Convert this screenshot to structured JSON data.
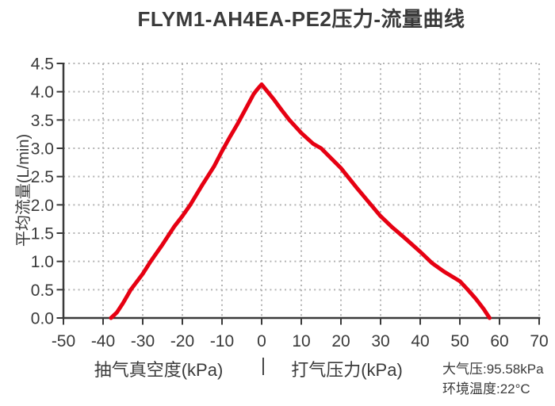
{
  "title": "FLYM1-AH4EA-PE2压力-流量曲线",
  "colors": {
    "curve": "#e60012",
    "text": "#3a3a3a",
    "axis": "#3a3a3a",
    "grid": "#b3b3b3",
    "background": "#ffffff"
  },
  "chart_data": {
    "type": "line",
    "title": "FLYM1-AH4EA-PE2压力-流量曲线",
    "ylabel": "平均流量(L/min)",
    "xlabel_left": "抽气真空度(kPa)",
    "xlabel_separator": "|",
    "xlabel_right": "打气压力(kPa)",
    "xlim": [
      -50,
      70
    ],
    "ylim": [
      0,
      4.5
    ],
    "x_ticks": [
      -50,
      -40,
      -30,
      -20,
      -10,
      0,
      10,
      20,
      30,
      40,
      50,
      60,
      70
    ],
    "y_ticks": [
      0,
      0.5,
      1,
      1.5,
      2,
      2.5,
      3,
      3.5,
      4,
      4.5
    ],
    "y_tick_labels": [
      "0.0",
      "0.5",
      "1.0",
      "1.5",
      "2.0",
      "2.5",
      "3.0",
      "3.5",
      "4.0",
      "4.5"
    ],
    "grid": "dotted",
    "legend": "none",
    "series": [
      {
        "name": "压力-流量曲线",
        "color": "#e60012",
        "points": [
          [
            -38,
            0
          ],
          [
            -36.5,
            0.1
          ],
          [
            -35,
            0.26
          ],
          [
            -33,
            0.5
          ],
          [
            -30,
            0.78
          ],
          [
            -28,
            1.0
          ],
          [
            -25,
            1.3
          ],
          [
            -22,
            1.62
          ],
          [
            -20,
            1.8
          ],
          [
            -18,
            2.0
          ],
          [
            -15,
            2.35
          ],
          [
            -12,
            2.68
          ],
          [
            -10,
            2.95
          ],
          [
            -8,
            3.2
          ],
          [
            -6,
            3.44
          ],
          [
            -4,
            3.7
          ],
          [
            -2,
            3.96
          ],
          [
            -1,
            4.05
          ],
          [
            0,
            4.13
          ],
          [
            1.5,
            4.0
          ],
          [
            3,
            3.87
          ],
          [
            5,
            3.68
          ],
          [
            7,
            3.5
          ],
          [
            10,
            3.27
          ],
          [
            13,
            3.08
          ],
          [
            15,
            3.0
          ],
          [
            20,
            2.65
          ],
          [
            24,
            2.3
          ],
          [
            27,
            2.05
          ],
          [
            30,
            1.8
          ],
          [
            33,
            1.6
          ],
          [
            36,
            1.42
          ],
          [
            40,
            1.17
          ],
          [
            43,
            0.97
          ],
          [
            46,
            0.82
          ],
          [
            50,
            0.65
          ],
          [
            52,
            0.5
          ],
          [
            54,
            0.34
          ],
          [
            56,
            0.16
          ],
          [
            57.5,
            0
          ]
        ]
      }
    ],
    "annotations": {
      "atmospheric_pressure": "大气压:95.58kPa",
      "ambient_temperature": "环境温度:22°C"
    }
  }
}
